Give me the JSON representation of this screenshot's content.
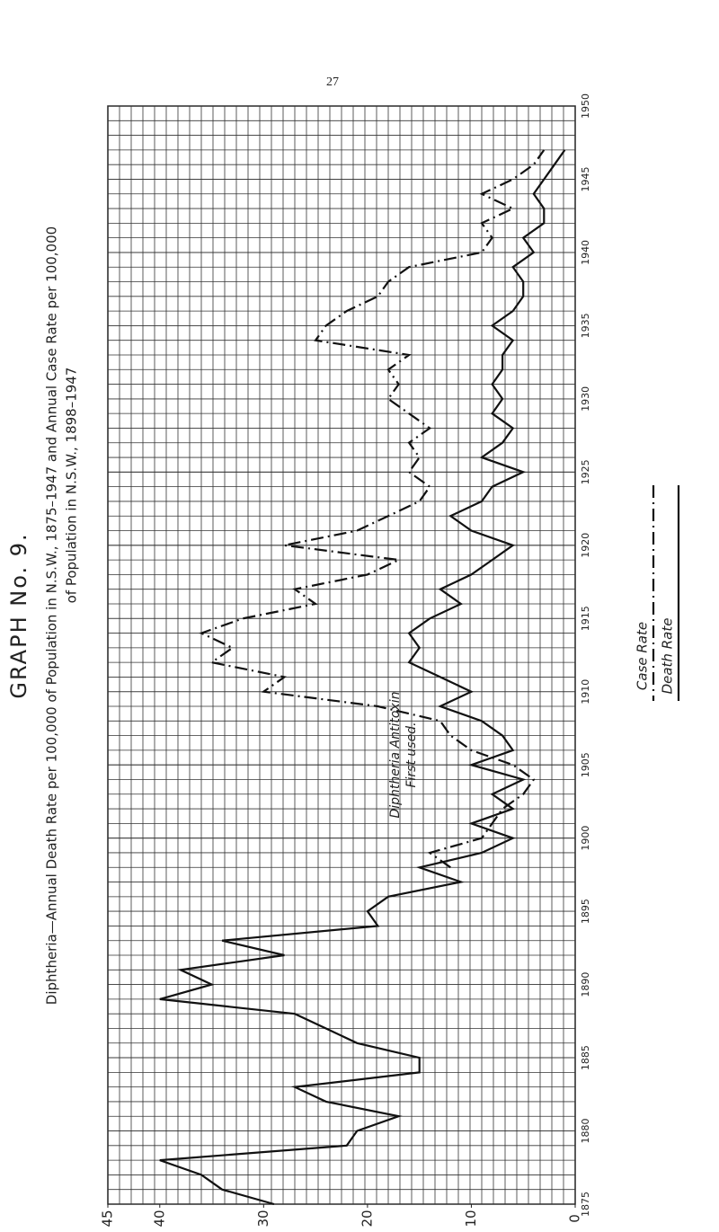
{
  "chart_data": {
    "type": "line",
    "page_number": "27",
    "heading": "GRAPH No. 9.",
    "title": "Diphtheria—Annual Death Rate per 100,000 of Population in N.S.W., 1875–1947 and Annual Case Rate per 100,000",
    "subtitle": "of Population in N.S.W., 1898–1947",
    "annotation": [
      "Diphtheria Antitoxin",
      "First used."
    ],
    "x": [
      1875,
      1876,
      1877,
      1878,
      1879,
      1880,
      1881,
      1882,
      1883,
      1884,
      1885,
      1886,
      1887,
      1888,
      1889,
      1890,
      1891,
      1892,
      1893,
      1894,
      1895,
      1896,
      1897,
      1898,
      1899,
      1900,
      1901,
      1902,
      1903,
      1904,
      1905,
      1906,
      1907,
      1908,
      1909,
      1910,
      1911,
      1912,
      1913,
      1914,
      1915,
      1916,
      1917,
      1918,
      1919,
      1920,
      1921,
      1922,
      1923,
      1924,
      1925,
      1926,
      1927,
      1928,
      1929,
      1930,
      1931,
      1932,
      1933,
      1934,
      1935,
      1936,
      1937,
      1938,
      1939,
      1940,
      1941,
      1942,
      1943,
      1944,
      1945,
      1946,
      1947
    ],
    "series": [
      {
        "name": "Case Rate",
        "color": "#111111",
        "dashed": true,
        "values": [
          null,
          null,
          null,
          null,
          null,
          null,
          null,
          null,
          null,
          null,
          null,
          null,
          null,
          null,
          null,
          null,
          null,
          null,
          null,
          null,
          null,
          null,
          null,
          12,
          14,
          9,
          8,
          7,
          5,
          4,
          6,
          10,
          12,
          13,
          19,
          30,
          28,
          35,
          33,
          36,
          32,
          25,
          27,
          20,
          17,
          28,
          21,
          18,
          15,
          14,
          16,
          15,
          16,
          14,
          16,
          18,
          17,
          18,
          16,
          25,
          24,
          22,
          19,
          18,
          16,
          9,
          8,
          9,
          6,
          9,
          6,
          4,
          3
        ]
      },
      {
        "name": "Death Rate",
        "color": "#111111",
        "dashed": false,
        "values": [
          29,
          34,
          36,
          40,
          22,
          21,
          17,
          24,
          27,
          15,
          15,
          21,
          24,
          27,
          40,
          35,
          38,
          28,
          34,
          19,
          20,
          18,
          11,
          15,
          9,
          6,
          10,
          6,
          8,
          5,
          10,
          6,
          7,
          9,
          13,
          10,
          13,
          16,
          15,
          16,
          14,
          11,
          13,
          10,
          8,
          6,
          10,
          12,
          9,
          8,
          5,
          9,
          7,
          6,
          8,
          7,
          8,
          7,
          7,
          6,
          8,
          6,
          5,
          5,
          6,
          4,
          5,
          3,
          3,
          4,
          3,
          2,
          1
        ]
      }
    ],
    "xlim": [
      1875,
      1950
    ],
    "xticks": [
      1875,
      1880,
      1885,
      1890,
      1895,
      1900,
      1905,
      1910,
      1915,
      1920,
      1925,
      1930,
      1935,
      1940,
      1945,
      1950
    ],
    "ylim": [
      0,
      45
    ],
    "yticks": [
      45,
      40,
      30,
      20,
      10,
      0
    ],
    "grid": true
  }
}
